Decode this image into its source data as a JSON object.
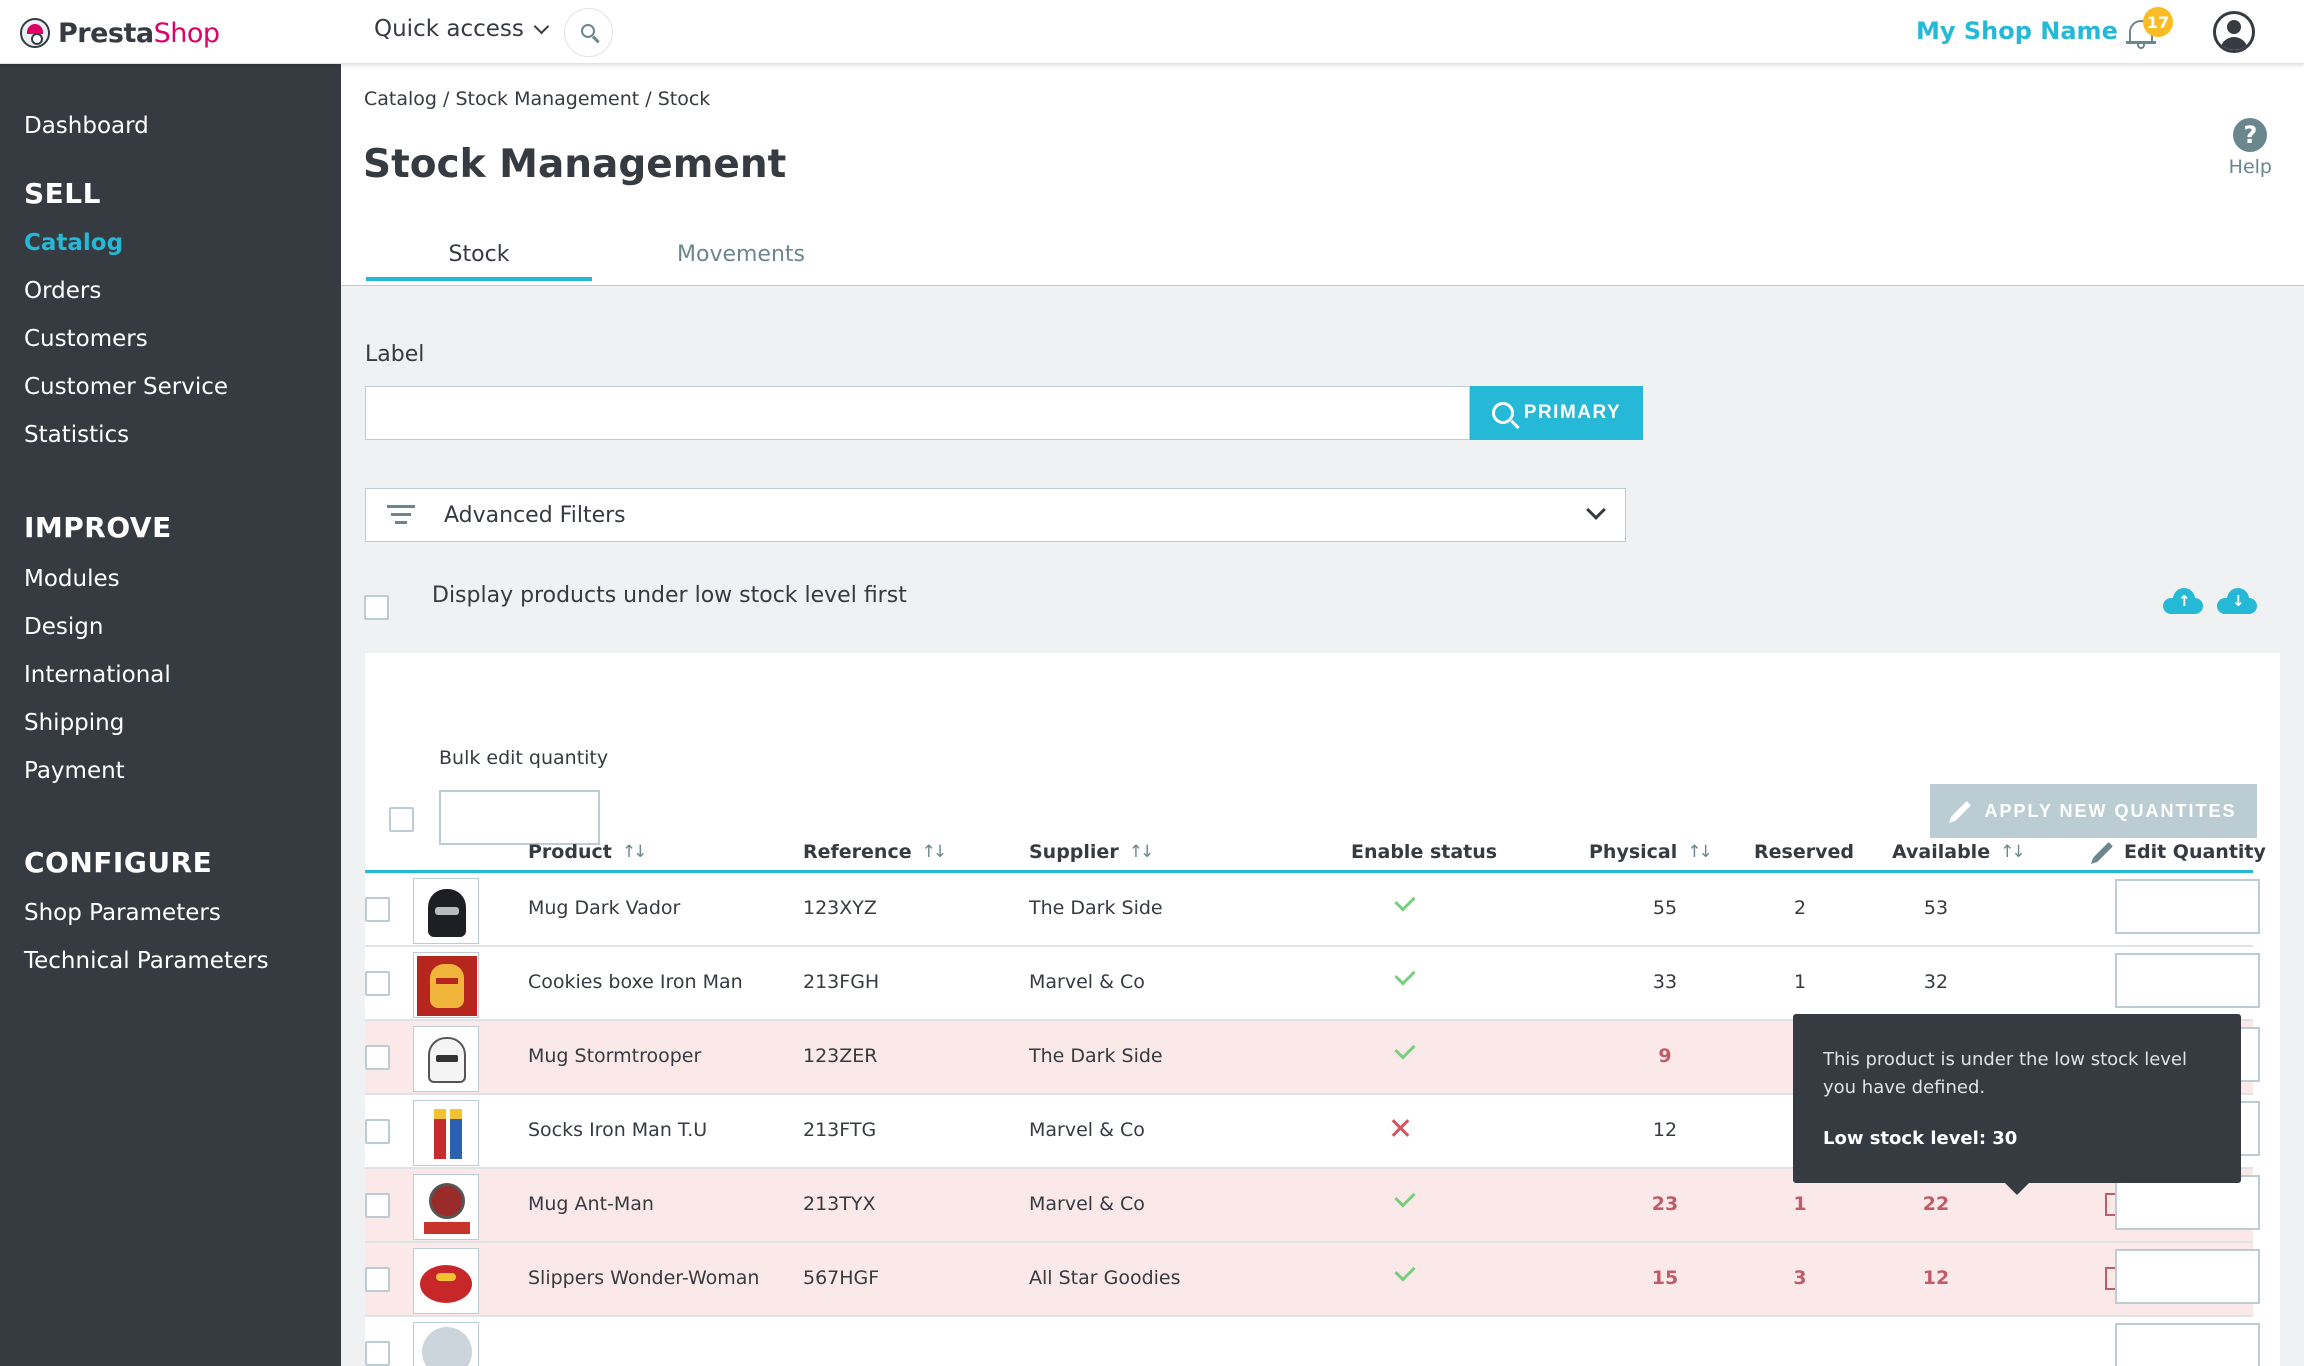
{
  "header": {
    "logo_main": "Presta",
    "logo_accent": "Shop",
    "quick_access": "Quick access",
    "shop_name": "My Shop Name",
    "notifications_count": "17"
  },
  "sidebar": {
    "dashboard": "Dashboard",
    "sections": [
      {
        "title": "SELL",
        "items": [
          "Catalog",
          "Orders",
          "Customers",
          "Customer Service",
          "Statistics"
        ]
      },
      {
        "title": "IMPROVE",
        "items": [
          "Modules",
          "Design",
          "International",
          "Shipping",
          "Payment"
        ]
      },
      {
        "title": "CONFIGURE",
        "items": [
          "Shop Parameters",
          "Technical Parameters"
        ]
      }
    ],
    "active_item": "Catalog"
  },
  "page": {
    "breadcrumb": "Catalog / Stock Management / Stock",
    "title": "Stock Management",
    "help_label": "Help",
    "tabs": [
      "Stock",
      "Movements"
    ],
    "active_tab": "Stock"
  },
  "search": {
    "label": "Label",
    "value": "",
    "button_label": "PRIMARY"
  },
  "filters": {
    "advanced_label": "Advanced Filters",
    "low_stock_first_label": "Display products under low stock level first",
    "low_stock_first_checked": false
  },
  "bulk": {
    "label": "Bulk edit quantity",
    "value": "",
    "apply_label": "APPLY NEW QUANTITES"
  },
  "table": {
    "columns": {
      "product": "Product",
      "reference": "Reference",
      "supplier": "Supplier",
      "enable_status": "Enable status",
      "physical": "Physical",
      "reserved": "Reserved",
      "available": "Available",
      "edit_quantity": "Edit Quantity"
    },
    "rows": [
      {
        "product": "Mug Dark Vador",
        "reference": "123XYZ",
        "supplier": "The Dark Side",
        "enabled": true,
        "physical": "55",
        "reserved": "2",
        "available": "53",
        "low_stock": false
      },
      {
        "product": "Cookies boxe Iron Man",
        "reference": "213FGH",
        "supplier": "Marvel & Co",
        "enabled": true,
        "physical": "33",
        "reserved": "1",
        "available": "32",
        "low_stock": false
      },
      {
        "product": "Mug Stormtrooper",
        "reference": "123ZER",
        "supplier": "The Dark Side",
        "enabled": true,
        "physical": "9",
        "reserved": "",
        "available": "",
        "low_stock": true
      },
      {
        "product": "Socks Iron Man T.U",
        "reference": "213FTG",
        "supplier": "Marvel & Co",
        "enabled": false,
        "physical": "12",
        "reserved": "",
        "available": "",
        "low_stock": false
      },
      {
        "product": "Mug Ant-Man",
        "reference": "213TYX",
        "supplier": "Marvel & Co",
        "enabled": true,
        "physical": "23",
        "reserved": "1",
        "available": "22",
        "low_stock": true
      },
      {
        "product": "Slippers Wonder-Woman",
        "reference": "567HGF",
        "supplier": "All Star Goodies",
        "enabled": true,
        "physical": "15",
        "reserved": "3",
        "available": "12",
        "low_stock": true
      }
    ]
  },
  "tooltip": {
    "text": "This product is under the low stock level you have defined.",
    "level": "Low stock level: 30"
  },
  "colors": {
    "accent": "#25b9d7",
    "brand": "#df0067",
    "sidebar": "#363a41",
    "low_stock_bg": "#fbe9ea",
    "low_stock_text": "#c05c67",
    "enabled": "#78d07d",
    "disabled": "#d5545f"
  },
  "icons": {
    "search": "search-icon",
    "bell": "bell-icon",
    "user": "user-icon",
    "help": "help-icon",
    "filter": "filter-icon",
    "upload": "cloud-upload-icon",
    "download": "cloud-download-icon",
    "sort": "sort-icon",
    "edit": "pencil-icon",
    "warning": "warning-icon"
  }
}
